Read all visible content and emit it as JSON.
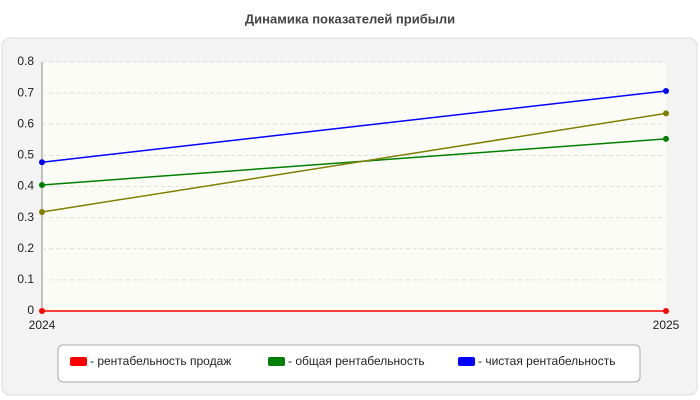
{
  "chart_data": {
    "type": "line",
    "title": "Динамика показателей прибыли",
    "categories": [
      "2024",
      "2025"
    ],
    "series": [
      {
        "name": "- рентабельность продаж",
        "color": "#ff0000",
        "values": [
          0,
          0
        ]
      },
      {
        "name": "- общая рентабельность",
        "color": "#008000",
        "values": [
          0.405,
          0.553
        ]
      },
      {
        "name": "- чистая рентабельность",
        "color": "#0000ff",
        "values": [
          0.478,
          0.707
        ]
      },
      {
        "color": "#808000",
        "values": [
          0.318,
          0.635
        ]
      }
    ],
    "ylim": [
      0,
      0.8
    ],
    "yticks": [
      0,
      0.1,
      0.2,
      0.3,
      0.4,
      0.5,
      0.6,
      0.7,
      0.8
    ],
    "grid": true,
    "legend": "bottom"
  }
}
